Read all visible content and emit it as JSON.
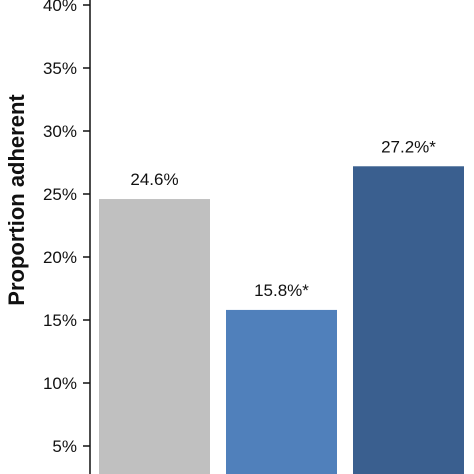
{
  "chart_data": {
    "type": "bar",
    "title": "",
    "xlabel": "",
    "ylabel": "Proportion adherent",
    "ylim": [
      0,
      40
    ],
    "yticks": [
      "5%",
      "10%",
      "15%",
      "20%",
      "25%",
      "30%",
      "35%",
      "40%"
    ],
    "ytick_values": [
      5,
      10,
      15,
      20,
      25,
      30,
      35,
      40
    ],
    "values": [
      24.6,
      15.8,
      27.2
    ],
    "data_labels": [
      "24.6%",
      "15.8%*",
      "27.2%*"
    ],
    "colors": [
      "#c0c0c0",
      "#5080bb",
      "#3a5f8f"
    ],
    "grid": false
  }
}
